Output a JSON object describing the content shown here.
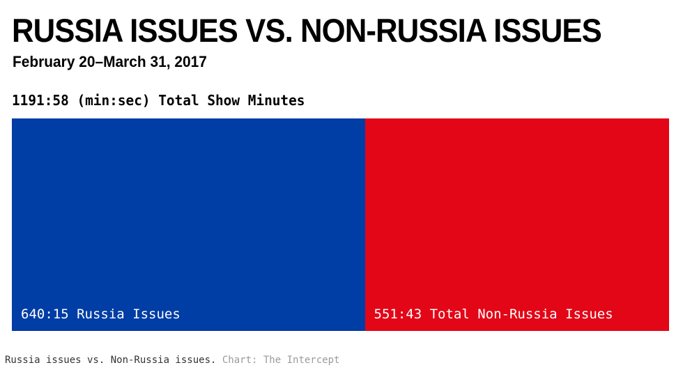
{
  "title": "RUSSIA ISSUES VS. NON-RUSSIA ISSUES",
  "subtitle": "February 20–March 31, 2017",
  "total_label": "1191:58 (min:sec) Total Show Minutes",
  "caption": {
    "text": "Russia issues vs. Non-Russia issues.",
    "credit": "Chart: The Intercept"
  },
  "chart_data": {
    "type": "bar",
    "stacked": "horizontal-proportional",
    "total": "1191:58",
    "total_seconds": 71518,
    "segments": [
      {
        "label": "640:15 Russia Issues",
        "seconds": 38415,
        "color": "#003DA5"
      },
      {
        "label": "551:43 Total Non-Russia Issues",
        "seconds": 33103,
        "color": "#E30617"
      }
    ]
  }
}
